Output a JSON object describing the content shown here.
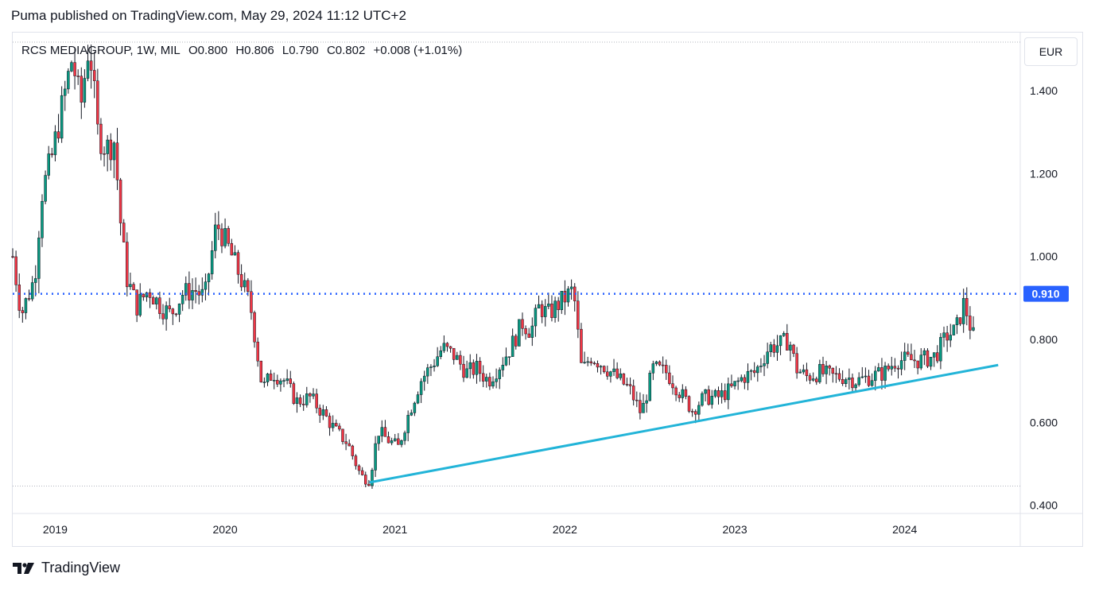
{
  "header": {
    "text": "Puma published on TradingView.com, May 29, 2024 11:12 UTC+2"
  },
  "legend": {
    "symbol": "RCS MEDIAGROUP, 1W, MIL",
    "open": "O0.800",
    "high": "H0.806",
    "low": "L0.790",
    "close": "C0.802",
    "change": "+0.008 (+1.01%)"
  },
  "currency": "EUR",
  "footer": {
    "brand": "TradingView"
  },
  "colors": {
    "up": "#089981",
    "down": "#f23645",
    "trendline": "#22b4d8",
    "level": "#2962ff",
    "label_bg": "#2962ff"
  },
  "chart_data": {
    "type": "candlestick",
    "ylim": [
      0.38,
      1.54
    ],
    "y_ticks": [
      "1.400",
      "1.200",
      "1.000",
      "0.800",
      "0.600",
      "0.400"
    ],
    "x_ticks": [
      "2019",
      "2020",
      "2021",
      "2022",
      "2023",
      "2024"
    ],
    "x_range": [
      2018.75,
      2024.68
    ],
    "horizontal_level": {
      "value": 0.91,
      "label": "0.910"
    },
    "trendline": {
      "from": {
        "x": 2020.85,
        "y": 0.455
      },
      "to": {
        "x": 2024.55,
        "y": 0.738
      }
    },
    "dotted_high_line": 1.54,
    "dotted_low_line": 0.45,
    "price_path": [
      [
        2018.75,
        1.0
      ],
      [
        2018.8,
        0.86
      ],
      [
        2018.88,
        0.95
      ],
      [
        2018.92,
        1.15
      ],
      [
        2018.98,
        1.24
      ],
      [
        2019.05,
        1.38
      ],
      [
        2019.1,
        1.48
      ],
      [
        2019.15,
        1.36
      ],
      [
        2019.2,
        1.52
      ],
      [
        2019.25,
        1.3
      ],
      [
        2019.3,
        1.26
      ],
      [
        2019.35,
        1.28
      ],
      [
        2019.38,
        1.1
      ],
      [
        2019.42,
        0.95
      ],
      [
        2019.48,
        0.88
      ],
      [
        2019.55,
        0.92
      ],
      [
        2019.62,
        0.88
      ],
      [
        2019.68,
        0.86
      ],
      [
        2019.75,
        0.91
      ],
      [
        2019.82,
        0.92
      ],
      [
        2019.88,
        0.9
      ],
      [
        2019.95,
        1.08
      ],
      [
        2020.02,
        1.02
      ],
      [
        2020.08,
        0.96
      ],
      [
        2020.15,
        0.88
      ],
      [
        2020.22,
        0.68
      ],
      [
        2020.28,
        0.72
      ],
      [
        2020.35,
        0.7
      ],
      [
        2020.42,
        0.65
      ],
      [
        2020.5,
        0.66
      ],
      [
        2020.58,
        0.62
      ],
      [
        2020.65,
        0.58
      ],
      [
        2020.72,
        0.55
      ],
      [
        2020.8,
        0.47
      ],
      [
        2020.85,
        0.46
      ],
      [
        2020.9,
        0.58
      ],
      [
        2020.95,
        0.56
      ],
      [
        2021.02,
        0.54
      ],
      [
        2021.08,
        0.62
      ],
      [
        2021.15,
        0.7
      ],
      [
        2021.22,
        0.74
      ],
      [
        2021.28,
        0.78
      ],
      [
        2021.35,
        0.76
      ],
      [
        2021.42,
        0.72
      ],
      [
        2021.48,
        0.73
      ],
      [
        2021.55,
        0.7
      ],
      [
        2021.62,
        0.74
      ],
      [
        2021.68,
        0.78
      ],
      [
        2021.75,
        0.84
      ],
      [
        2021.8,
        0.82
      ],
      [
        2021.85,
        0.88
      ],
      [
        2021.9,
        0.86
      ],
      [
        2021.95,
        0.88
      ],
      [
        2022.0,
        0.9
      ],
      [
        2022.05,
        0.92
      ],
      [
        2022.1,
        0.72
      ],
      [
        2022.15,
        0.76
      ],
      [
        2022.22,
        0.74
      ],
      [
        2022.3,
        0.71
      ],
      [
        2022.38,
        0.68
      ],
      [
        2022.45,
        0.62
      ],
      [
        2022.52,
        0.73
      ],
      [
        2022.6,
        0.72
      ],
      [
        2022.68,
        0.67
      ],
      [
        2022.75,
        0.63
      ],
      [
        2022.82,
        0.66
      ],
      [
        2022.9,
        0.66
      ],
      [
        2022.98,
        0.68
      ],
      [
        2023.05,
        0.71
      ],
      [
        2023.12,
        0.72
      ],
      [
        2023.2,
        0.78
      ],
      [
        2023.28,
        0.79
      ],
      [
        2023.32,
        0.8
      ],
      [
        2023.36,
        0.73
      ],
      [
        2023.42,
        0.71
      ],
      [
        2023.5,
        0.72
      ],
      [
        2023.58,
        0.71
      ],
      [
        2023.65,
        0.71
      ],
      [
        2023.72,
        0.7
      ],
      [
        2023.8,
        0.71
      ],
      [
        2023.88,
        0.72
      ],
      [
        2023.95,
        0.75
      ],
      [
        2024.02,
        0.75
      ],
      [
        2024.1,
        0.75
      ],
      [
        2024.18,
        0.76
      ],
      [
        2024.25,
        0.81
      ],
      [
        2024.3,
        0.82
      ],
      [
        2024.35,
        0.89
      ],
      [
        2024.38,
        0.84
      ],
      [
        2024.41,
        0.8
      ]
    ]
  }
}
